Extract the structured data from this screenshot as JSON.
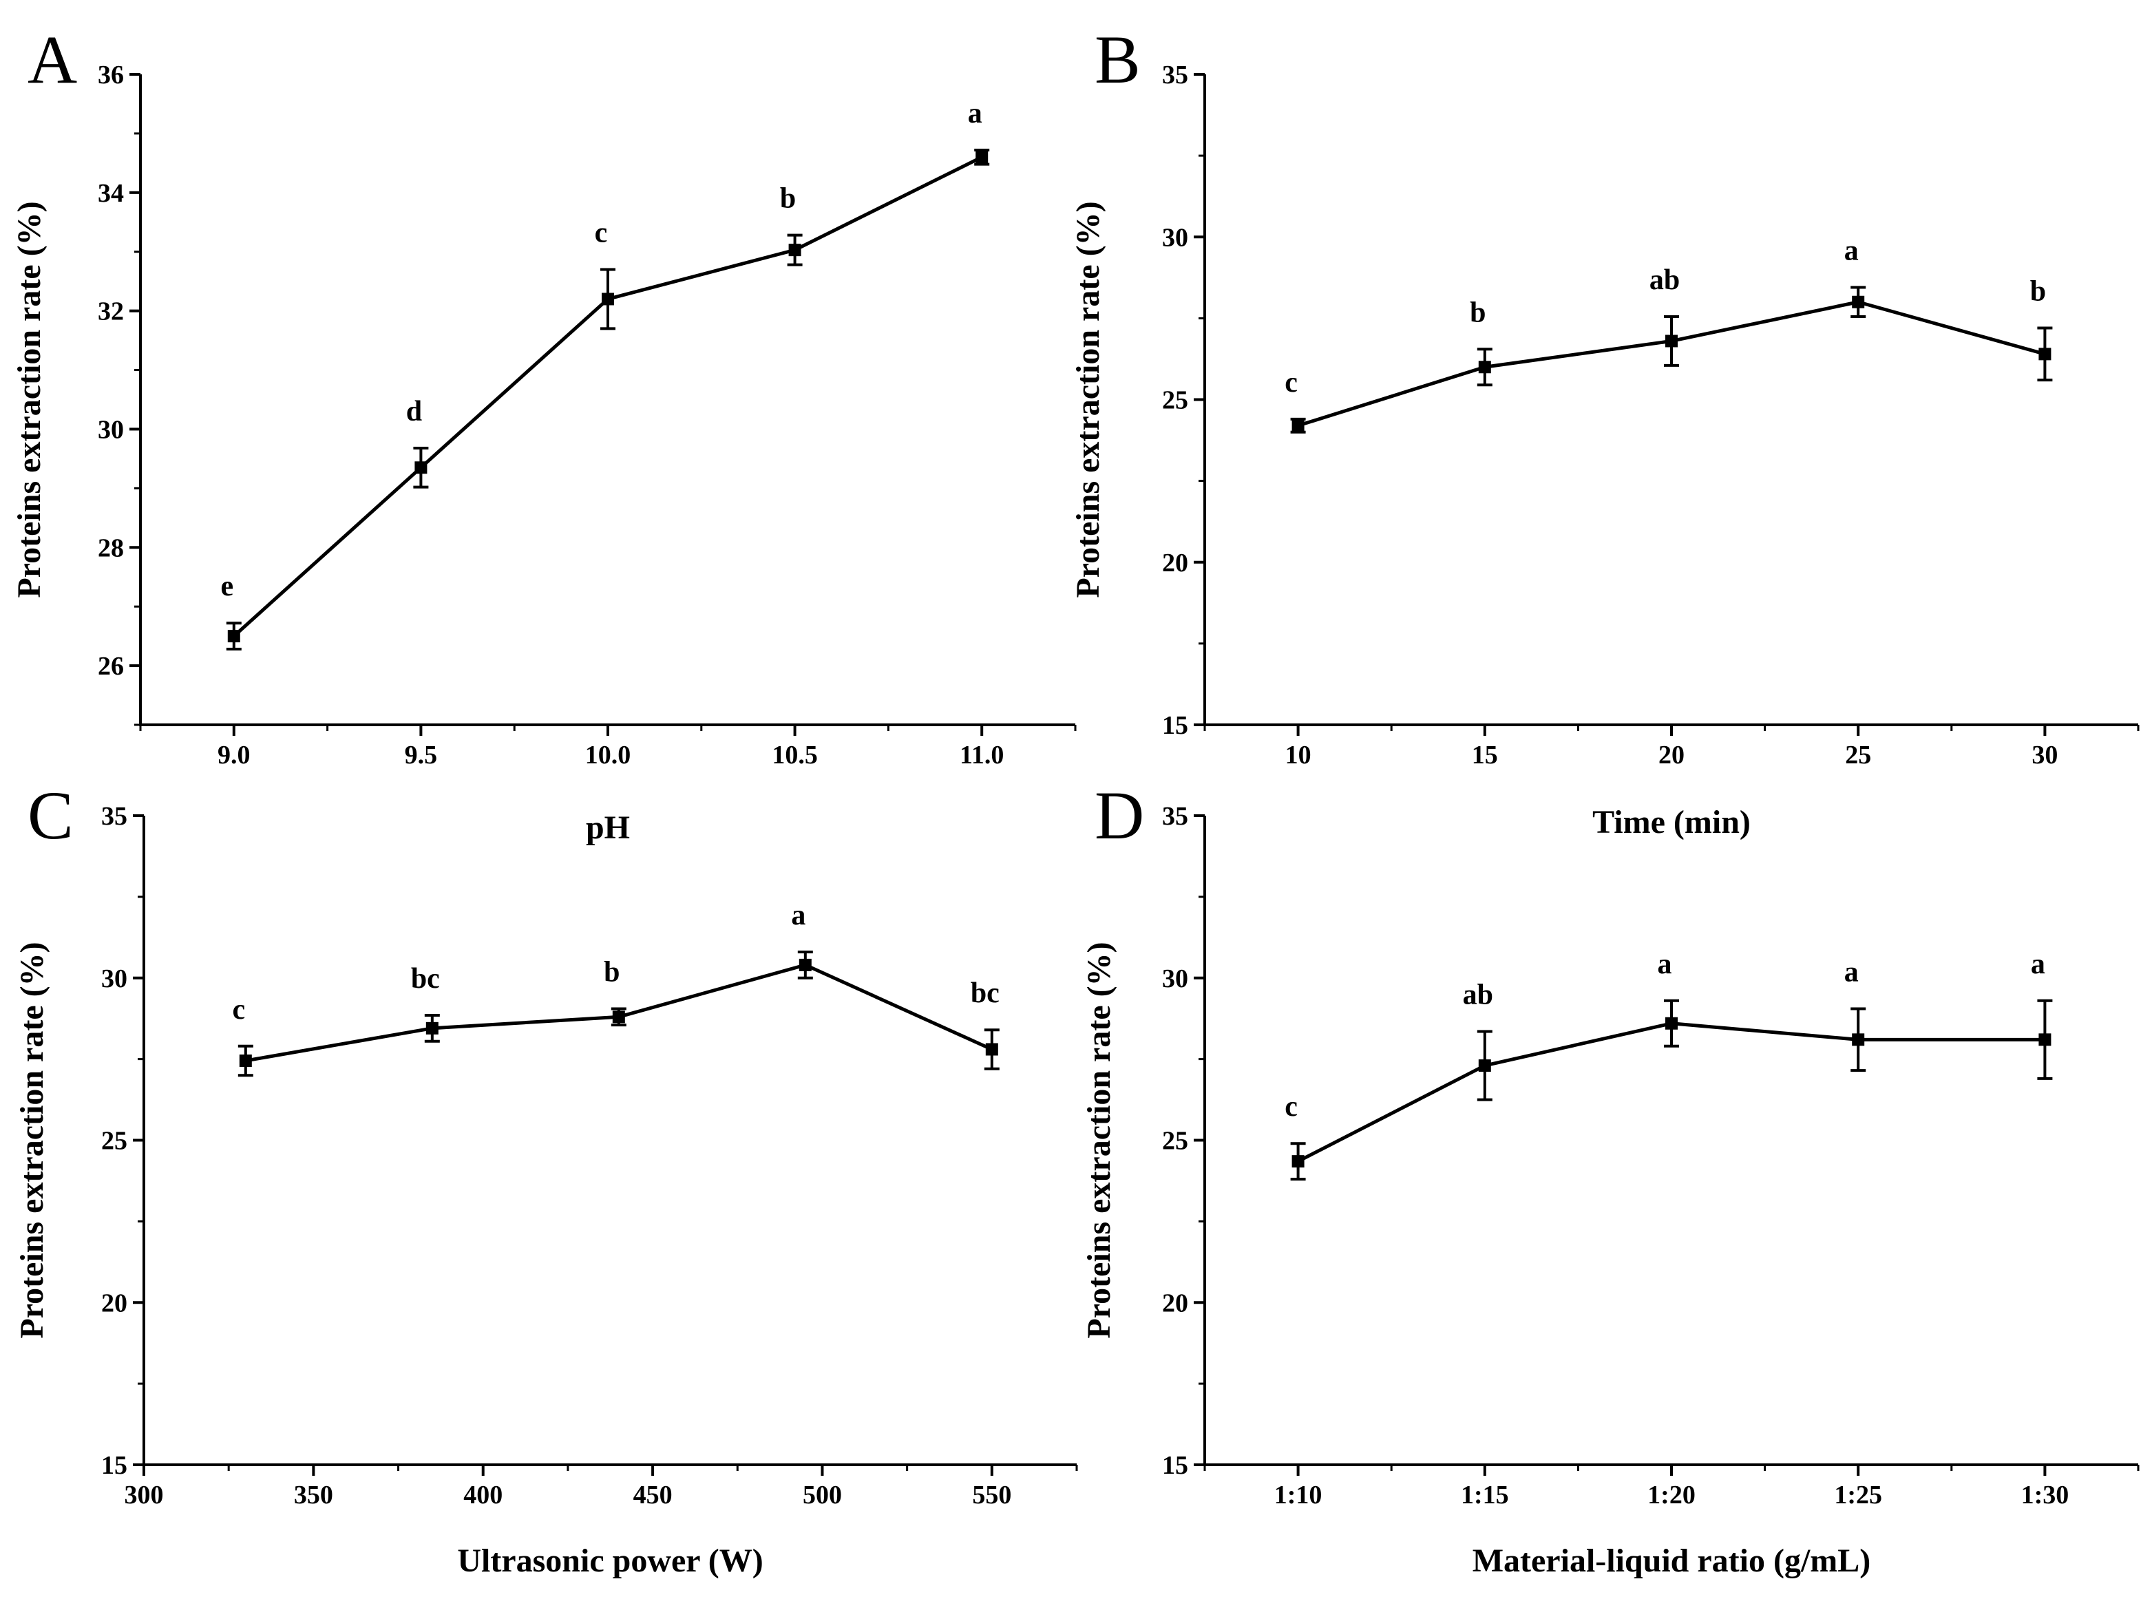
{
  "chart_data": [
    {
      "panel": "A",
      "type": "line",
      "xlabel": "pH",
      "ylabel": "Proteins extraction rate (%)",
      "x_categorical": false,
      "xlim": [
        8.75,
        11.25
      ],
      "ylim": [
        25,
        36
      ],
      "xticks": [
        9.0,
        9.5,
        10.0,
        10.5,
        11.0
      ],
      "xtick_labels": [
        "9.0",
        "9.5",
        "10.0",
        "10.5",
        "11.0"
      ],
      "yticks": [
        26,
        28,
        30,
        32,
        34,
        36
      ],
      "ytick_labels": [
        "26",
        "28",
        "30",
        "32",
        "34",
        "36"
      ],
      "x": [
        9.0,
        9.5,
        10.0,
        10.5,
        11.0
      ],
      "y": [
        26.5,
        29.35,
        32.2,
        33.03,
        34.6
      ],
      "err": [
        0.22,
        0.33,
        0.5,
        0.25,
        0.12
      ],
      "sig_labels": [
        "e",
        "d",
        "c",
        "b",
        "a"
      ]
    },
    {
      "panel": "B",
      "type": "line",
      "xlabel": "Time (min)",
      "ylabel": "Proteins extraction rate (%)",
      "x_categorical": false,
      "xlim": [
        7.5,
        32.5
      ],
      "ylim": [
        15,
        35
      ],
      "xticks": [
        10,
        15,
        20,
        25,
        30
      ],
      "xtick_labels": [
        "10",
        "15",
        "20",
        "25",
        "30"
      ],
      "yticks": [
        15,
        20,
        25,
        30,
        35
      ],
      "ytick_labels": [
        "15",
        "20",
        "25",
        "30",
        "35"
      ],
      "x": [
        10,
        15,
        20,
        25,
        30
      ],
      "y": [
        24.2,
        26.0,
        26.8,
        28.0,
        26.4
      ],
      "err": [
        0.2,
        0.55,
        0.75,
        0.45,
        0.8
      ],
      "sig_labels": [
        "c",
        "b",
        "ab",
        "a",
        "b"
      ]
    },
    {
      "panel": "C",
      "type": "line",
      "xlabel": "Ultrasonic power (W)",
      "ylabel": "Proteins extraction rate (%)",
      "x_categorical": false,
      "xlim": [
        300,
        575
      ],
      "ylim": [
        15,
        35
      ],
      "xticks": [
        300,
        350,
        400,
        450,
        500,
        550
      ],
      "xtick_labels": [
        "300",
        "350",
        "400",
        "450",
        "500",
        "550"
      ],
      "yticks": [
        15,
        20,
        25,
        30,
        35
      ],
      "ytick_labels": [
        "15",
        "20",
        "25",
        "30",
        "35"
      ],
      "x": [
        330,
        385,
        440,
        495,
        550
      ],
      "y": [
        27.45,
        28.45,
        28.8,
        30.4,
        27.8
      ],
      "err": [
        0.45,
        0.4,
        0.25,
        0.4,
        0.6
      ],
      "sig_labels": [
        "c",
        "bc",
        "b",
        "a",
        "bc"
      ]
    },
    {
      "panel": "D",
      "type": "line",
      "xlabel": "Material-liquid ratio (g/mL)",
      "ylabel": "Proteins extraction rate (%)",
      "x_categorical": true,
      "xlim": [
        -0.5,
        4.5
      ],
      "ylim": [
        15,
        35
      ],
      "xticks": [
        0,
        1,
        2,
        3,
        4
      ],
      "xtick_labels": [
        "1:10",
        "1:15",
        "1:20",
        "1:25",
        "1:30"
      ],
      "yticks": [
        15,
        20,
        25,
        30,
        35
      ],
      "ytick_labels": [
        "15",
        "20",
        "25",
        "30",
        "35"
      ],
      "categories": [
        "1:10",
        "1:15",
        "1:20",
        "1:25",
        "1:30"
      ],
      "x": [
        0,
        1,
        2,
        3,
        4
      ],
      "y": [
        24.35,
        27.3,
        28.6,
        28.1,
        28.1
      ],
      "err": [
        0.55,
        1.05,
        0.7,
        0.95,
        1.2
      ],
      "sig_labels": [
        "c",
        "ab",
        "a",
        "a",
        "a"
      ]
    }
  ]
}
